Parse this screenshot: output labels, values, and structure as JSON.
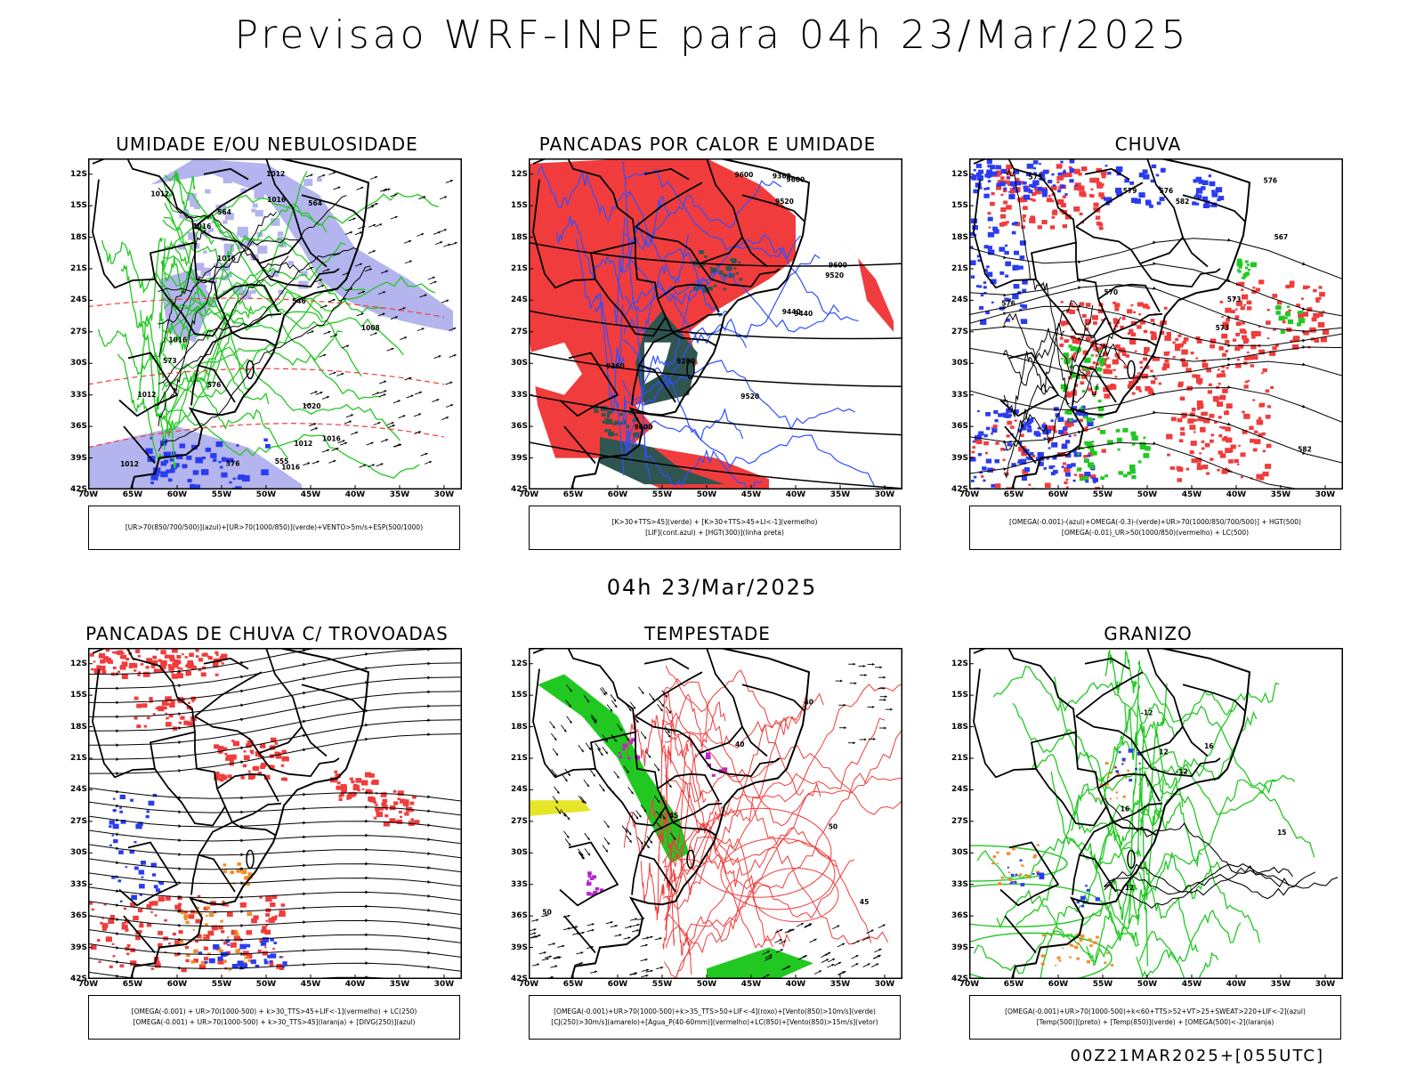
{
  "page": {
    "title": "Previsao WRF-INPE  para 04h 23/Mar/2025",
    "subtitle": "04h 23/Mar/2025",
    "footer": "00Z21MAR2025+[055UTC]"
  },
  "axes": {
    "lat_ticks": [
      "12S",
      "15S",
      "18S",
      "21S",
      "24S",
      "27S",
      "30S",
      "33S",
      "36S",
      "39S",
      "42S"
    ],
    "lon_ticks": [
      "70W",
      "65W",
      "60W",
      "55W",
      "50W",
      "45W",
      "40W",
      "35W",
      "30W"
    ]
  },
  "colors": {
    "green": "#22c822",
    "red": "#f03c3c",
    "blue": "#2a3cf0",
    "lavender": "#b4b4ee",
    "darkteal": "#2f5550",
    "black": "#000000",
    "orange": "#f08c28",
    "purple": "#b428c8",
    "yellow": "#e6e628",
    "contour_blue": "#3050ff"
  },
  "panels": [
    {
      "id": "umidade",
      "title": "UMIDADE E/OU NEBULOSIDADE",
      "legend": [
        "[UR>70(850/700/500)](azul)+[UR>70(1000/850)](verde)+VENTO>5m/s+ESP(500/1000)"
      ],
      "contour_labels": [
        "1012",
        "1012",
        "1016",
        "1016",
        "1016",
        "1012",
        "1008",
        "1012",
        "1016",
        "1012",
        "1016",
        "1020",
        "1016",
        "576",
        "576",
        "573",
        "564",
        "564",
        "555",
        "546"
      ]
    },
    {
      "id": "pancadas_calor",
      "title": "PANCADAS POR CALOR E UMIDADE",
      "legend": [
        "[K>30+TTS>45](verde) + [K>30+TTS>45+LI<-1](vermelho)",
        "[LIF](cont.azul) + [HGT(300)](linha preta)"
      ],
      "contour_labels": [
        "9600",
        "9600",
        "9600",
        "9520",
        "9520",
        "9520",
        "9440",
        "9440",
        "9360",
        "9280",
        "9360",
        "9600"
      ]
    },
    {
      "id": "chuva",
      "title": "CHUVA",
      "legend": [
        "[OMEGA(-0.001)-(azul)+OMEGA(-0.3)-(verde)+UR>70(1000/850/700/500)] + HGT(500)",
        "[OMEGA(-0.01)_UR>50(1000/850)(vermelho) + LC(500)"
      ],
      "contour_labels": [
        "582",
        "579",
        "576",
        "573",
        "570",
        "576",
        "573",
        "582",
        "576",
        "573",
        "567"
      ]
    },
    {
      "id": "pancadas_trovoadas",
      "title": "PANCADAS DE CHUVA C/ TROVOADAS",
      "legend": [
        "[OMEGA(-0.001) + UR>70(1000-500) + k>30_TTS>45+LIF<-1](vermelho) + LC(250)",
        "[OMEGA(-0.001) + UR>70(1000-500) + k>30_TTS>45](laranja) + [DIVG(250)](azul)"
      ],
      "contour_labels": []
    },
    {
      "id": "tempestade",
      "title": "TEMPESTADE",
      "legend": [
        "[OMEGA(-0.001)+UR>70(1000-500)+k>35_TTS>50+LIF<-4](roxo)+[Vento(850)>10m/s](verde)",
        "[CJ(250)>30m/s](amarelo)+[Agua_P(40-60mm)](vermelho)+LC(850)+[Vento(850)>15m/s](vetor)"
      ],
      "contour_labels": [
        "40",
        "40",
        "50",
        "50",
        "45",
        "45"
      ]
    },
    {
      "id": "granizo",
      "title": "GRANIZO",
      "legend": [
        "[OMEGA(-0.001)+UR>70(1000-500)+k<60+TTS>52+VT>25+SWEAT>220+LIF<-2](azul)",
        "[Temp(500)](preto) + [Temp(850)](verde) + [OMEGA(500)<-2](laranja)"
      ],
      "contour_labels": [
        "-12",
        "-12",
        "12",
        "12",
        "15",
        "16",
        "16"
      ]
    }
  ],
  "chart_data": {
    "type": "map",
    "title": "Previsao WRF-INPE  para 04h 23/Mar/2025",
    "lat_range": [
      "12S",
      "42S"
    ],
    "lon_range": [
      "70W",
      "30W"
    ],
    "panels": [
      "UMIDADE E/OU NEBULOSIDADE",
      "PANCADAS POR CALOR E UMIDADE",
      "CHUVA",
      "PANCADAS DE CHUVA C/ TROVOADAS",
      "TEMPESTADE",
      "GRANIZO"
    ]
  }
}
